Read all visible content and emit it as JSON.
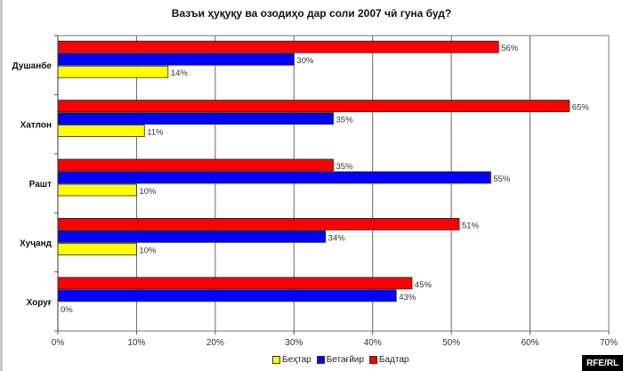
{
  "chart_data": {
    "type": "bar",
    "orientation": "horizontal",
    "title": "Вазъи ҳуқуқу ва озодиҳо дар соли 2007 чӣ гуна буд?",
    "categories": [
      "Душанбе",
      "Хатлон",
      "Рашт",
      "Хуҷанд",
      "Хоруғ"
    ],
    "series": [
      {
        "name": "Бадтар",
        "color": "#ff0000",
        "values": [
          56,
          65,
          35,
          51,
          45
        ],
        "labels": [
          "56%",
          "65%",
          "35%",
          "51%",
          "45%"
        ]
      },
      {
        "name": "Бетағйир",
        "color": "#0000ff",
        "values": [
          30,
          35,
          55,
          34,
          43
        ],
        "labels": [
          "30%",
          "35%",
          "55%",
          "34%",
          "43%"
        ]
      },
      {
        "name": "Беҳтар",
        "color": "#ffff00",
        "values": [
          14,
          11,
          10,
          10,
          0
        ],
        "labels": [
          "14%",
          "11%",
          "10%",
          "10%",
          "0%"
        ]
      }
    ],
    "legend_order": [
      "Беҳтар",
      "Бетағйир",
      "Бадтар"
    ],
    "xlim": [
      0,
      70
    ],
    "xticks": [
      "0%",
      "10%",
      "20%",
      "30%",
      "40%",
      "50%",
      "60%",
      "70%"
    ],
    "grid": "vertical",
    "legend_position": "bottom"
  },
  "watermark": "RFE/RL"
}
